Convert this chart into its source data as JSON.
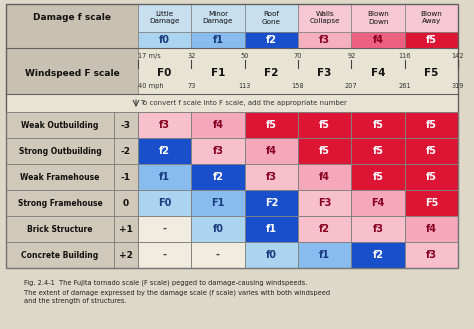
{
  "damage_headers": [
    "Little\nDamage",
    "Minor\nDamage",
    "Roof\nGone",
    "Walls\nCollapse",
    "Blown\nDown",
    "Blown\nAway"
  ],
  "damage_f_labels": [
    "f0",
    "f1",
    "f2",
    "f3",
    "f4",
    "f5"
  ],
  "damage_f_colors": [
    "#aad4f0",
    "#88bbee",
    "#1a4fcc",
    "#f5b0c0",
    "#ee6080",
    "#dd1535"
  ],
  "damage_f_text_colors": [
    "#1a3a80",
    "#1a3a80",
    "#ffffff",
    "#880020",
    "#880020",
    "#ffffff"
  ],
  "damage_header_colors_left": [
    "#c8e0f0",
    "#c8e0f0",
    "#c8e0f0"
  ],
  "damage_header_colors_right": [
    "#f8ccd8",
    "#f8ccd8",
    "#f8ccd8"
  ],
  "windspeed_values_ms": [
    "17 m/s",
    "32",
    "50",
    "70",
    "92",
    "116",
    "142"
  ],
  "windspeed_F_labels": [
    "F0",
    "F1",
    "F2",
    "F3",
    "F4",
    "F5"
  ],
  "windspeed_values_mph": [
    "40 mph",
    "73",
    "113",
    "158",
    "207",
    "261",
    "319"
  ],
  "convert_note": "To convert f scale into F scale, add the appropriate number",
  "structure_rows": [
    {
      "name": "Weak Outbuilding",
      "adj": "-3",
      "cells": [
        "f3",
        "f4",
        "f5",
        "f5",
        "f5",
        "f5"
      ],
      "colors": [
        "#f8c0cc",
        "#f5a8bc",
        "#dd1535",
        "#dd1535",
        "#dd1535",
        "#dd1535"
      ],
      "tcolors": [
        "#880020",
        "#880020",
        "#ffffff",
        "#ffffff",
        "#ffffff",
        "#ffffff"
      ]
    },
    {
      "name": "Strong Outbuilding",
      "adj": "-2",
      "cells": [
        "f2",
        "f3",
        "f4",
        "f5",
        "f5",
        "f5"
      ],
      "colors": [
        "#1a4fcc",
        "#f8c0cc",
        "#f5a8bc",
        "#dd1535",
        "#dd1535",
        "#dd1535"
      ],
      "tcolors": [
        "#ffffff",
        "#880020",
        "#880020",
        "#ffffff",
        "#ffffff",
        "#ffffff"
      ]
    },
    {
      "name": "Weak Framehouse",
      "adj": "-1",
      "cells": [
        "f1",
        "f2",
        "f3",
        "f4",
        "f5",
        "f5"
      ],
      "colors": [
        "#88bbee",
        "#1a4fcc",
        "#f8c0cc",
        "#f5a8bc",
        "#dd1535",
        "#dd1535"
      ],
      "tcolors": [
        "#1a3a80",
        "#ffffff",
        "#880020",
        "#880020",
        "#ffffff",
        "#ffffff"
      ]
    },
    {
      "name": "Strong Framehouse",
      "adj": "0",
      "cells": [
        "F0",
        "F1",
        "F2",
        "F3",
        "F4",
        "F5"
      ],
      "colors": [
        "#aad4f0",
        "#88bbee",
        "#1a4fcc",
        "#f8c0cc",
        "#f5a8bc",
        "#dd1535"
      ],
      "tcolors": [
        "#1a3a80",
        "#1a3a80",
        "#ffffff",
        "#880020",
        "#880020",
        "#ffffff"
      ]
    },
    {
      "name": "Brick Structure",
      "adj": "+1",
      "cells": [
        "-",
        "f0",
        "f1",
        "f2",
        "f3",
        "f4"
      ],
      "colors": [
        "#f0ece0",
        "#aad4f0",
        "#1a4fcc",
        "#f8c0cc",
        "#f8c0cc",
        "#f5a8bc"
      ],
      "tcolors": [
        "#444444",
        "#1a3a80",
        "#ffffff",
        "#880020",
        "#880020",
        "#880020"
      ]
    },
    {
      "name": "Concrete Building",
      "adj": "+2",
      "cells": [
        "-",
        "-",
        "f0",
        "f1",
        "f2",
        "f3"
      ],
      "colors": [
        "#f0ece0",
        "#f0ece0",
        "#aad4f0",
        "#88bbee",
        "#1a4fcc",
        "#f8c0cc"
      ],
      "tcolors": [
        "#444444",
        "#444444",
        "#1a3a80",
        "#1a3a80",
        "#ffffff",
        "#880020"
      ]
    }
  ],
  "caption_line1": "Fig. 2.4-1  The Fujita tornado scale (F scale) pegged to damage-causing windspeeds.",
  "caption_line2": "The extent of damage expressed by the damage scale (f scale) varies with both windspeed",
  "caption_line3": "and the strength of structures.",
  "bg_color": "#ddd8c8",
  "header_bg": "#c8c0b0",
  "row_label_bg": "#d0c8b8",
  "windspeed_bg": "#e8e4d4"
}
